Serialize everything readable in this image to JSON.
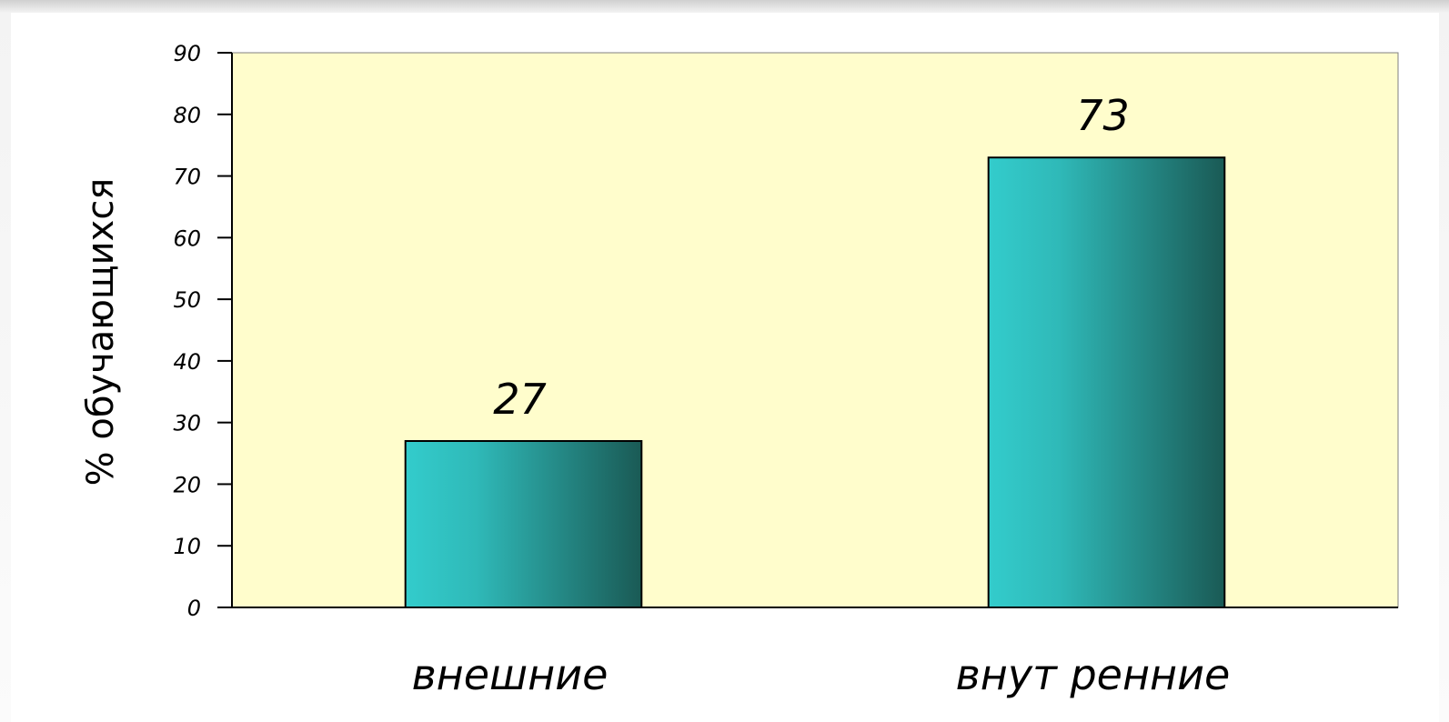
{
  "colors": {
    "plot_background": "#FFFDCC",
    "bar_light": "#33CCCC",
    "bar_dark": "#1A5A55",
    "axis": "#000000"
  },
  "chart_data": {
    "type": "bar",
    "categories": [
      "внешние",
      "внут ренние"
    ],
    "values": [
      27,
      73
    ],
    "data_labels": [
      "27",
      "73"
    ],
    "ylabel": "% обучающихся",
    "xlabel": "",
    "title": "",
    "ylim": [
      0,
      90
    ],
    "yticks": [
      0,
      10,
      20,
      30,
      40,
      50,
      60,
      70,
      80,
      90
    ],
    "grid": false,
    "legend": "none"
  }
}
